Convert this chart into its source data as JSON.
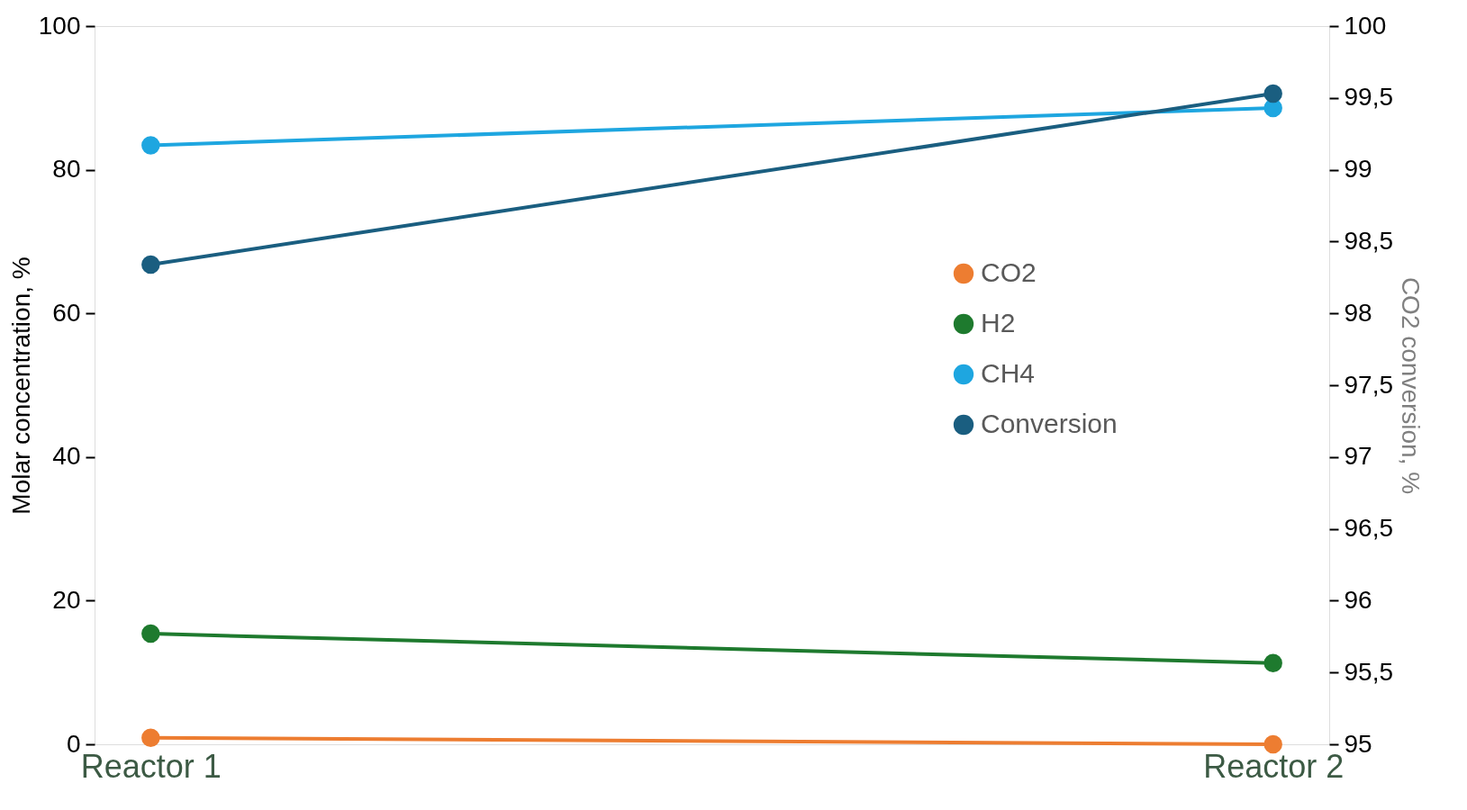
{
  "chart_data": {
    "type": "line",
    "categories": [
      "Reactor 1",
      "Reactor 2"
    ],
    "ylabel": "Molar concentration, %",
    "y2label": "CO2 conversion, %",
    "ylim": [
      0,
      100
    ],
    "yticks": [
      0,
      20,
      40,
      60,
      80,
      100
    ],
    "y2lim": [
      95,
      100
    ],
    "y2ticks": [
      95,
      {
        "value": 95.5,
        "label": "95,5"
      },
      96,
      {
        "value": 96.5,
        "label": "96,5"
      },
      97,
      {
        "value": 97.5,
        "label": "97,5"
      },
      98,
      {
        "value": 98.5,
        "label": "98,5"
      },
      99,
      {
        "value": 99.5,
        "label": "99,5"
      },
      100
    ],
    "series": [
      {
        "name": "CO2",
        "color": "#ed7d31",
        "values": [
          0.9,
          0.0
        ]
      },
      {
        "name": "H2",
        "color": "#1e7a2e",
        "values": [
          15.4,
          11.3
        ]
      },
      {
        "name": "CH4",
        "color": "#1ea6e0",
        "values": [
          83.4,
          88.6
        ]
      },
      {
        "name": "Conversion",
        "color": "#1a5e80",
        "values": [
          98.34,
          99.53
        ],
        "axis": "y2"
      }
    ],
    "legend": "right",
    "grid": false,
    "marker": "circle",
    "line_style": "solid"
  }
}
